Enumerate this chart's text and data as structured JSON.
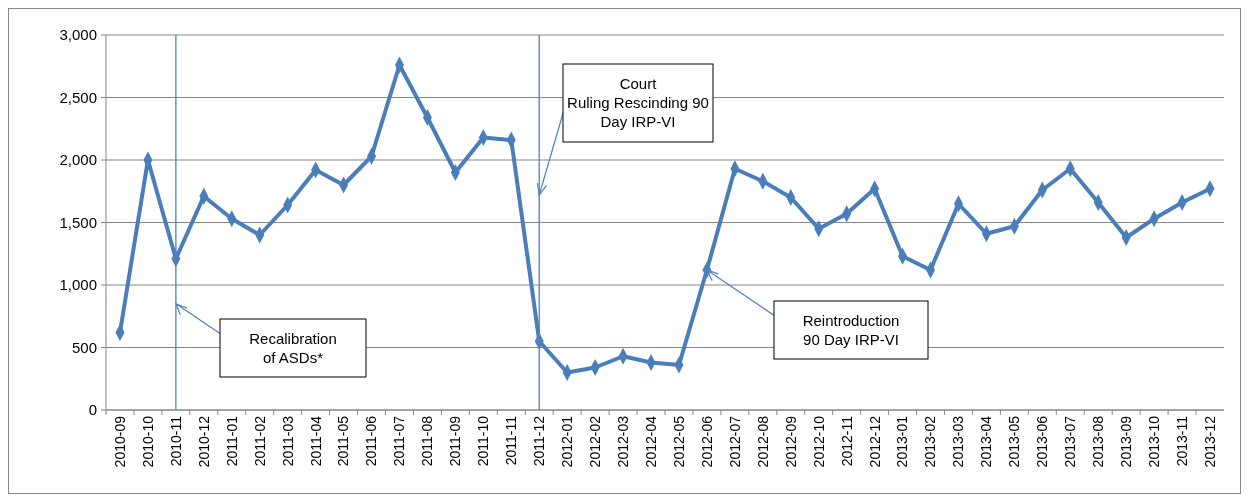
{
  "chart_data": {
    "type": "line",
    "categories": [
      "2010-09",
      "2010-10",
      "2010-11",
      "2010-12",
      "2011-01",
      "2011-02",
      "2011-03",
      "2011-04",
      "2011-05",
      "2011-06",
      "2011-07",
      "2011-08",
      "2011-09",
      "2011-10",
      "2011-11",
      "2011-12",
      "2012-01",
      "2012-02",
      "2012-03",
      "2012-04",
      "2012-05",
      "2012-06",
      "2012-07",
      "2012-08",
      "2012-09",
      "2012-10",
      "2012-11",
      "2012-12",
      "2013-01",
      "2013-02",
      "2013-03",
      "2013-04",
      "2013-05",
      "2013-06",
      "2013-07",
      "2013-08",
      "2013-09",
      "2013-10",
      "2013-11",
      "2013-12"
    ],
    "series": [
      {
        "color": "#4a7ebb",
        "values": [
          620,
          2000,
          1210,
          1710,
          1530,
          1400,
          1640,
          1920,
          1800,
          2030,
          2760,
          2340,
          1900,
          2180,
          2160,
          550,
          300,
          340,
          430,
          380,
          360,
          1120,
          1930,
          1830,
          1700,
          1450,
          1570,
          1770,
          1230,
          1120,
          1650,
          1410,
          1470,
          1760,
          1930,
          1660,
          1380,
          1530,
          1660,
          1770
        ]
      }
    ],
    "ylim": [
      0,
      3000
    ],
    "yticks": [
      {
        "value": 0,
        "label": "0"
      },
      {
        "value": 500,
        "label": "500"
      },
      {
        "value": 1000,
        "label": "1,000"
      },
      {
        "value": 1500,
        "label": "1,500"
      },
      {
        "value": 2000,
        "label": "2,000"
      },
      {
        "value": 2500,
        "label": "2,500"
      },
      {
        "value": 3000,
        "label": "3,000"
      }
    ],
    "grid": "y",
    "marker": "diamond",
    "line_style": "solid",
    "ref_lines": [
      {
        "axis": "x",
        "value": "2010-11",
        "color": "#4f81bd"
      },
      {
        "axis": "x",
        "value": "2011-12",
        "color": "#4f81bd"
      }
    ],
    "annotations": [
      {
        "text": "Recalibration of ASDs*",
        "x": "2010-11",
        "y": 850
      },
      {
        "text": "Court Ruling Rescinding  90 Day IRP-VI",
        "x": "2011-12",
        "y": 1720
      },
      {
        "text": "Reintroduction 90 Day IRP-VI",
        "x": "2012-06",
        "y": 1120
      }
    ]
  }
}
